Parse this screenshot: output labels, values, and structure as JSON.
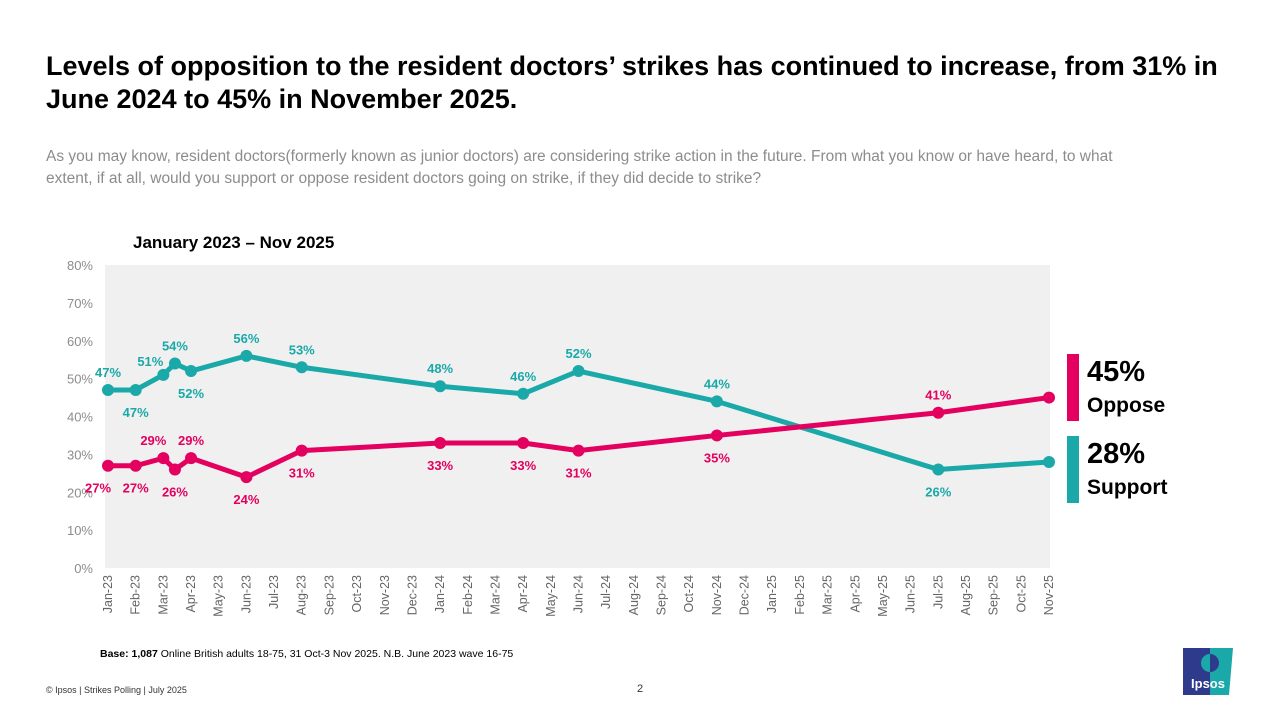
{
  "header": {
    "title": "Levels of opposition to the resident doctors’ strikes has continued to increase, from 31% in June 2024 to 45% in November 2025.",
    "subtitle": "As you may know, resident doctors(formerly known as junior doctors) are considering strike action in the future. From what you know or have heard, to what extent, if at all, would you support or oppose resident doctors going on strike, if they did decide to strike?"
  },
  "chart_data": {
    "type": "line",
    "title": "January 2023 – Nov 2025",
    "ylim": [
      0,
      80
    ],
    "yticks": [
      "0%",
      "10%",
      "20%",
      "30%",
      "40%",
      "50%",
      "60%",
      "70%",
      "80%"
    ],
    "categories": [
      "Jan-23",
      "Feb-23",
      "Mar-23",
      "Apr-23",
      "May-23",
      "Jun-23",
      "Jul-23",
      "Aug-23",
      "Sep-23",
      "Oct-23",
      "Nov-23",
      "Dec-23",
      "Jan-24",
      "Feb-24",
      "Mar-24",
      "Apr-24",
      "May-24",
      "Jun-24",
      "Jul-24",
      "Aug-24",
      "Sep-24",
      "Oct-24",
      "Nov-24",
      "Dec-24",
      "Jan-25",
      "Feb-25",
      "Mar-25",
      "Apr-25",
      "May-25",
      "Jun-25",
      "Jul-25",
      "Aug-25",
      "Sep-25",
      "Oct-25",
      "Nov-25"
    ],
    "x": [
      "2023-01",
      "2023-02",
      "2023-03",
      "2023-03-14",
      "2023-04",
      "2023-06",
      "2023-08",
      "2024-01",
      "2024-04",
      "2024-06",
      "2024-11",
      "2025-07",
      "2025-11"
    ],
    "grid": false,
    "background": "#f0f0f0",
    "series": [
      {
        "name": "Support",
        "color": "#1aa9a8",
        "values": [
          47,
          47,
          51,
          54,
          52,
          56,
          53,
          48,
          46,
          52,
          44,
          26,
          28
        ],
        "label_pos": [
          "above",
          "below",
          "left",
          "above",
          "below",
          "above",
          "above",
          "above",
          "above",
          "above",
          "above",
          "below",
          "none"
        ]
      },
      {
        "name": "Oppose",
        "color": "#e3005f",
        "values": [
          27,
          27,
          29,
          26,
          29,
          24,
          31,
          33,
          33,
          31,
          35,
          41,
          45
        ],
        "label_pos": [
          "below-left",
          "below",
          "above-left",
          "below",
          "above",
          "below",
          "below",
          "below",
          "below",
          "below",
          "below",
          "above",
          "none"
        ]
      }
    ]
  },
  "legend": {
    "oppose_value": "45%",
    "oppose_label": "Oppose",
    "support_value": "28%",
    "support_label": "Support"
  },
  "footer": {
    "base_bold": "Base: 1,087",
    "base_text": " Online British adults 18-75, 31 Oct-3 Nov 2025. N.B. June 2023 wave 16-75",
    "copyright": "© Ipsos | Strikes Polling | July 2025",
    "page": "2",
    "logo_text": "Ipsos"
  }
}
